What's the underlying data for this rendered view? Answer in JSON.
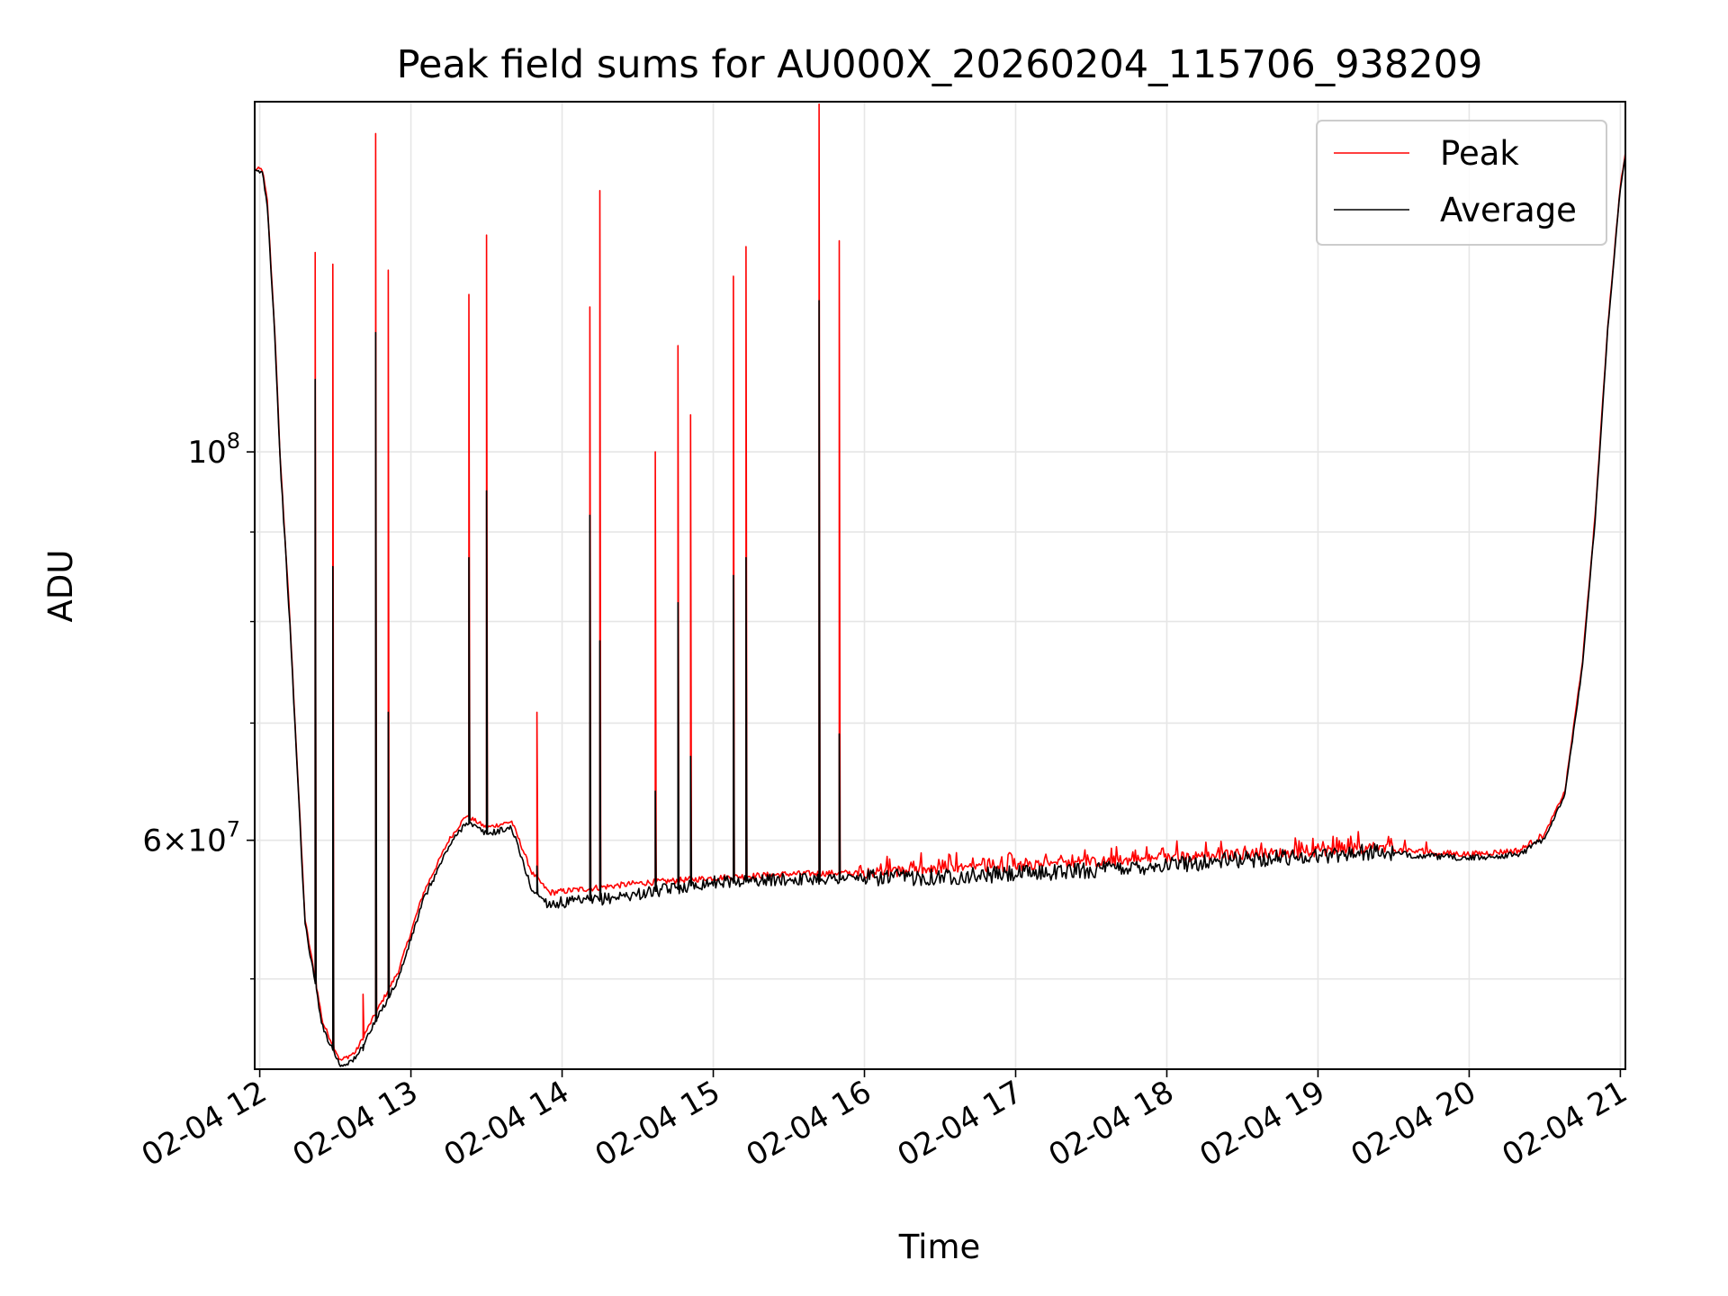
{
  "chart_data": {
    "type": "line",
    "title": "Peak field sums for AU000X_20260204_115706_938209",
    "xlabel": "Time",
    "ylabel": "ADU",
    "yscale": "log",
    "ylim": [
      44400000,
      158500000
    ],
    "xlim": [
      "02-04 11:58",
      "02-04 21:02"
    ],
    "x_ticks": [
      "02-04 12",
      "02-04 13",
      "02-04 14",
      "02-04 15",
      "02-04 16",
      "02-04 17",
      "02-04 18",
      "02-04 19",
      "02-04 20",
      "02-04 21"
    ],
    "y_ticks": [
      {
        "value": 100000000,
        "base": "10",
        "exp": "8"
      },
      {
        "value": 60000000,
        "mantissa": "6",
        "times": "×",
        "base": "10",
        "exp": "7"
      }
    ],
    "grid": true,
    "legend_position": "top-right",
    "colors": {
      "peak": "#ff0000",
      "average": "#000000",
      "grid": "#e6e6e6"
    },
    "series": [
      {
        "name": "Peak",
        "color": "#ff0000",
        "x": [
          "02-04 11:58",
          "02-04 12:01",
          "02-04 12:03",
          "02-04 12:06",
          "02-04 12:08",
          "02-04 12:12",
          "02-04 12:18",
          "02-04 12:25",
          "02-04 12:32",
          "02-04 12:38",
          "02-04 12:45",
          "02-04 12:55",
          "02-04 13:05",
          "02-04 13:15",
          "02-04 13:22",
          "02-04 13:30",
          "02-04 13:40",
          "02-04 13:48",
          "02-04 13:55",
          "02-04 14:10",
          "02-04 14:30",
          "02-04 15:00",
          "02-04 15:30",
          "02-04 16:00",
          "02-04 16:30",
          "02-04 17:00",
          "02-04 17:30",
          "02-04 18:00",
          "02-04 18:30",
          "02-04 19:00",
          "02-04 19:20",
          "02-04 19:40",
          "02-04 20:00",
          "02-04 20:20",
          "02-04 20:30",
          "02-04 20:38",
          "02-04 20:45",
          "02-04 20:50",
          "02-04 20:55",
          "02-04 21:00",
          "02-04 21:02"
        ],
        "y": [
          145000000,
          145000000,
          139000000,
          117000000,
          100000000,
          80000000,
          54000000,
          47200000,
          44900000,
          45400000,
          47500000,
          50500000,
          56000000,
          60000000,
          62000000,
          61000000,
          61500000,
          57500000,
          56000000,
          56300000,
          56700000,
          57100000,
          57400000,
          57500000,
          57700000,
          58000000,
          58300000,
          58600000,
          58900000,
          59100000,
          59400000,
          59100000,
          58900000,
          59200000,
          60500000,
          64000000,
          76000000,
          92000000,
          118000000,
          142000000,
          148000000
        ]
      },
      {
        "name": "Average",
        "color": "#000000",
        "x": [
          "02-04 11:58",
          "02-04 12:01",
          "02-04 12:03",
          "02-04 12:06",
          "02-04 12:08",
          "02-04 12:12",
          "02-04 12:18",
          "02-04 12:25",
          "02-04 12:32",
          "02-04 12:38",
          "02-04 12:45",
          "02-04 12:55",
          "02-04 13:05",
          "02-04 13:15",
          "02-04 13:22",
          "02-04 13:30",
          "02-04 13:40",
          "02-04 13:48",
          "02-04 13:55",
          "02-04 14:10",
          "02-04 14:30",
          "02-04 15:00",
          "02-04 15:30",
          "02-04 16:00",
          "02-04 16:30",
          "02-04 17:00",
          "02-04 17:30",
          "02-04 18:00",
          "02-04 18:30",
          "02-04 19:00",
          "02-04 19:20",
          "02-04 19:40",
          "02-04 20:00",
          "02-04 20:20",
          "02-04 20:30",
          "02-04 20:38",
          "02-04 20:45",
          "02-04 20:50",
          "02-04 20:55",
          "02-04 21:00",
          "02-04 21:02"
        ],
        "y": [
          144500000,
          144500000,
          138500000,
          116500000,
          99500000,
          79500000,
          53700000,
          46900000,
          44600000,
          45000000,
          47000000,
          50000000,
          55500000,
          59500000,
          61500000,
          60500000,
          61000000,
          56200000,
          55200000,
          55400000,
          55900000,
          56800000,
          57000000,
          57100000,
          57200000,
          57400000,
          57700000,
          58100000,
          58500000,
          58800000,
          59100000,
          58800000,
          58600000,
          58900000,
          60200000,
          63700000,
          75500000,
          91500000,
          117500000,
          141500000,
          147500000
        ]
      }
    ],
    "spikes": [
      {
        "time": "02-04 12:22",
        "peak": 130000000,
        "average": 110000000
      },
      {
        "time": "02-04 12:29",
        "peak": 128000000,
        "average": 86000000
      },
      {
        "time": "02-04 12:41",
        "peak": 49000000,
        "average": 45500000
      },
      {
        "time": "02-04 12:46",
        "peak": 152000000,
        "average": 117000000
      },
      {
        "time": "02-04 12:51",
        "peak": 127000000,
        "average": 71000000
      },
      {
        "time": "02-04 13:23",
        "peak": 123000000,
        "average": 87000000
      },
      {
        "time": "02-04 13:30",
        "peak": 133000000,
        "average": 95000000
      },
      {
        "time": "02-04 13:50",
        "peak": 71000000,
        "average": 58000000
      },
      {
        "time": "02-04 14:11",
        "peak": 121000000,
        "average": 92000000
      },
      {
        "time": "02-04 14:15",
        "peak": 141000000,
        "average": 78000000
      },
      {
        "time": "02-04 14:37",
        "peak": 100000000,
        "average": 64000000
      },
      {
        "time": "02-04 14:46",
        "peak": 115000000,
        "average": 82000000
      },
      {
        "time": "02-04 14:51",
        "peak": 105000000,
        "average": 67000000
      },
      {
        "time": "02-04 15:08",
        "peak": 126000000,
        "average": 85000000
      },
      {
        "time": "02-04 15:13",
        "peak": 131000000,
        "average": 87000000
      },
      {
        "time": "02-04 15:42",
        "peak": 158000000,
        "average": 122000000
      },
      {
        "time": "02-04 15:50",
        "peak": 132000000,
        "average": 69000000
      }
    ],
    "legend": {
      "peak": "Peak",
      "average": "Average"
    }
  }
}
